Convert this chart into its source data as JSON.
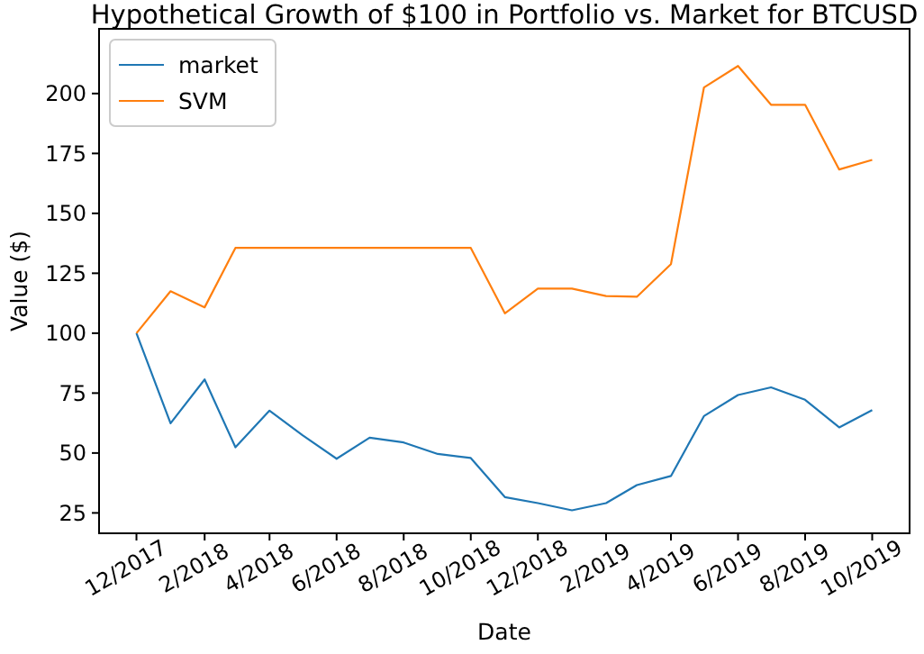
{
  "chart_data": {
    "type": "line",
    "title": "Hypothetical Growth of $100 in Portfolio vs. Market for BTCUSD",
    "xlabel": "Date",
    "ylabel": "Value ($)",
    "x": [
      "2017-12",
      "2018-01",
      "2018-02",
      "2018-03",
      "2018-04",
      "2018-05",
      "2018-06",
      "2018-07",
      "2018-08",
      "2018-09",
      "2018-10",
      "2018-11",
      "2018-12",
      "2019-01",
      "2019-02",
      "2019-03",
      "2019-04",
      "2019-05",
      "2019-06",
      "2019-07",
      "2019-08",
      "2019-09",
      "2019-10"
    ],
    "series": [
      {
        "name": "market",
        "color": "#1f77b4",
        "values": [
          100,
          62.4,
          80.7,
          52.4,
          67.7,
          57.4,
          47.6,
          56.4,
          54.4,
          49.6,
          47.9,
          31.6,
          29.1,
          26.1,
          29.1,
          36.6,
          40.4,
          65.4,
          74.2,
          77.4,
          72.2,
          60.7,
          67.9
        ]
      },
      {
        "name": "SVM",
        "color": "#ff7f0e",
        "values": [
          100,
          117.5,
          110.8,
          135.6,
          135.6,
          135.6,
          135.6,
          135.6,
          135.6,
          135.6,
          135.6,
          108.3,
          118.6,
          118.6,
          115.5,
          115.2,
          128.8,
          202.5,
          211.5,
          195.3,
          195.3,
          168.3,
          172.3
        ]
      }
    ],
    "xlim": [
      "2017-10-28",
      "2019-11-04"
    ],
    "xticks": [
      {
        "value": "2017-12",
        "label": "12/2017"
      },
      {
        "value": "2018-02",
        "label": "2/2018"
      },
      {
        "value": "2018-04",
        "label": "4/2018"
      },
      {
        "value": "2018-06",
        "label": "6/2018"
      },
      {
        "value": "2018-08",
        "label": "8/2018"
      },
      {
        "value": "2018-10",
        "label": "10/2018"
      },
      {
        "value": "2018-12",
        "label": "12/2018"
      },
      {
        "value": "2019-02",
        "label": "2/2019"
      },
      {
        "value": "2019-04",
        "label": "4/2019"
      },
      {
        "value": "2019-06",
        "label": "6/2019"
      },
      {
        "value": "2019-08",
        "label": "8/2019"
      },
      {
        "value": "2019-10",
        "label": "10/2019"
      }
    ],
    "ylim": [
      16.5,
      227
    ],
    "yticks": [
      25,
      50,
      75,
      100,
      125,
      150,
      175,
      200
    ],
    "legend": "top left",
    "grid": false,
    "marker": "none",
    "line_style": "solid"
  }
}
